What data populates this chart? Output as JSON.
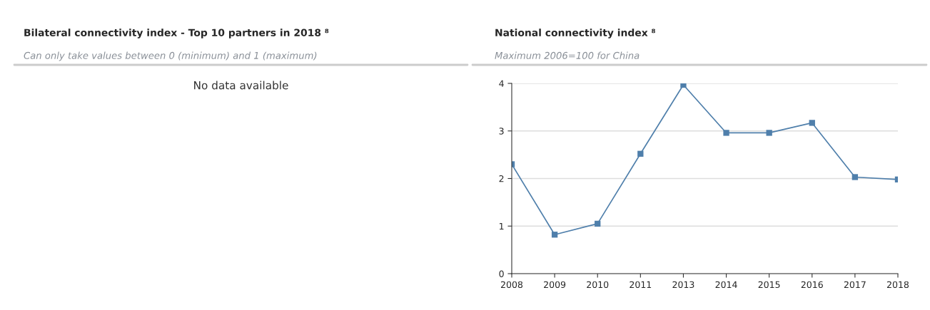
{
  "chart_data": [
    {
      "type": "other",
      "title": "Bilateral connectivity index - Top 10 partners in 2018 ⁸",
      "subtitle": "Can only take values between 0 (minimum) and 1 (maximum)",
      "annotations": [
        "No data available"
      ]
    },
    {
      "type": "line",
      "title": "National connectivity index ⁸",
      "subtitle": "Maximum 2006=100 for China",
      "categories": [
        "2008",
        "2009",
        "2010",
        "2011",
        "2013",
        "2014",
        "2015",
        "2016",
        "2017",
        "2018"
      ],
      "series": [
        {
          "color": "#4f7fab",
          "values": [
            2.3,
            0.82,
            1.05,
            2.52,
            3.97,
            2.96,
            2.96,
            3.17,
            2.03,
            1.98
          ]
        }
      ],
      "ylim": [
        0,
        4
      ],
      "yticks": [
        0,
        1,
        2,
        3,
        4
      ],
      "grid": "y",
      "marker": "square",
      "line_style": "solid"
    }
  ]
}
